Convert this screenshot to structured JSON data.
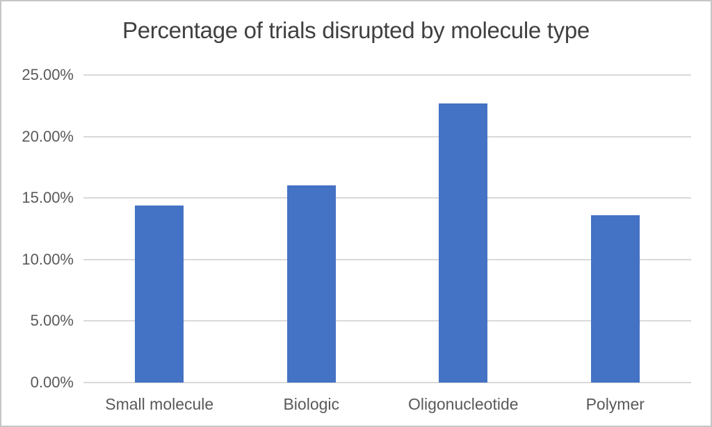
{
  "window": {
    "background_color": "#ffffff",
    "border_color": "#c6c6c6"
  },
  "chart_data": {
    "type": "bar",
    "title": "Percentage of trials disrupted by molecule type",
    "categories": [
      "Small molecule",
      "Biologic",
      "Oligonucleotide",
      "Polymer"
    ],
    "values": [
      14.4,
      16.0,
      22.7,
      13.6
    ],
    "value_unit": "%",
    "xlabel": "",
    "ylabel": "",
    "ylim": [
      0,
      25
    ],
    "y_ticks": [
      {
        "value": 0,
        "label": "0.00%"
      },
      {
        "value": 5,
        "label": "5.00%"
      },
      {
        "value": 10,
        "label": "10.00%"
      },
      {
        "value": 15,
        "label": "15.00%"
      },
      {
        "value": 20,
        "label": "20.00%"
      },
      {
        "value": 25,
        "label": "25.00%"
      }
    ],
    "grid": true,
    "legend_position": "none",
    "bar_color": "#4472C4",
    "gridline_color": "#d9d9d9",
    "axis_text_color": "#595959",
    "title_color": "#404040"
  }
}
